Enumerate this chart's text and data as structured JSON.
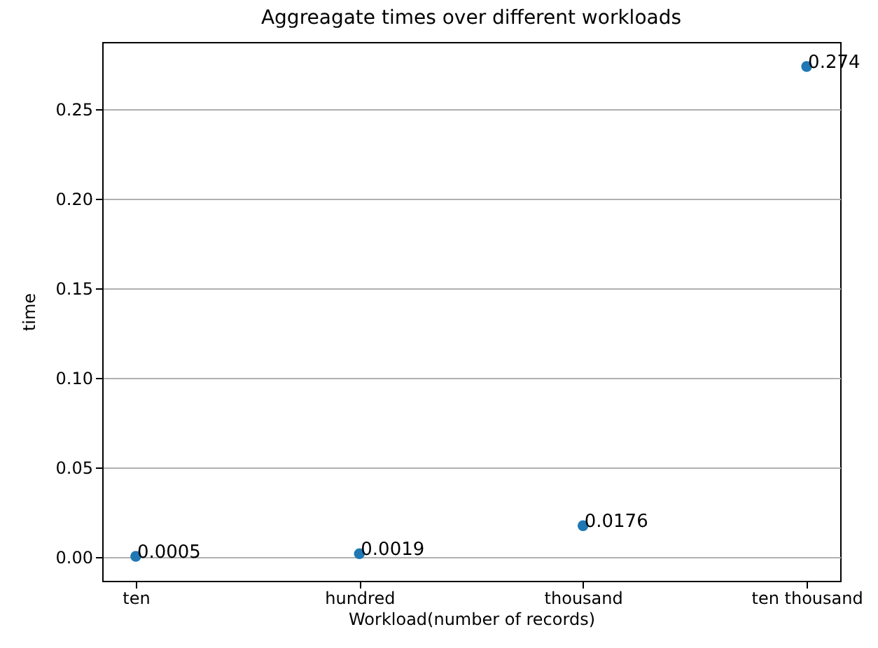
{
  "chart_data": {
    "type": "scatter",
    "title": "Aggreagate times over different workloads",
    "xlabel": "Workload(number of records)",
    "ylabel": "time",
    "categories": [
      "ten",
      "hundred",
      "thousand",
      "ten thousand"
    ],
    "series": [
      {
        "color": "#1f77b4",
        "values": [
          0.0005,
          0.0019,
          0.0176,
          0.274
        ]
      }
    ],
    "ylim": [
      -0.0132,
      0.2877
    ],
    "yticks": [
      {
        "value": 0,
        "label": "0.00"
      },
      0.05,
      {
        "value": 0.1,
        "label": "0.10"
      },
      0.15,
      {
        "value": 0.2,
        "label": "0.20"
      },
      0.25
    ],
    "grid": "y",
    "data_labels": true,
    "marker": "circle"
  }
}
